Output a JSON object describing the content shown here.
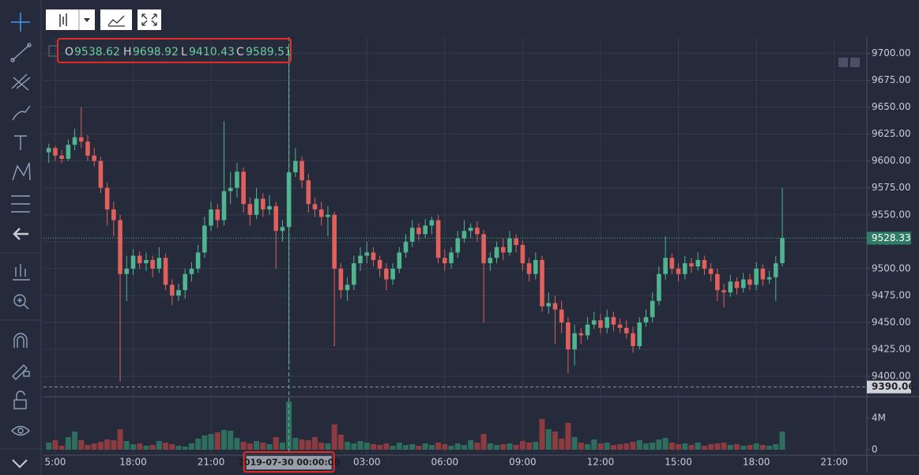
{
  "chart_data": {
    "type": "candlestick",
    "ohlc_labels": [
      "O",
      "H",
      "L",
      "C"
    ],
    "categories": [
      null,
      "5:00",
      null,
      null,
      null,
      null,
      null,
      null,
      null,
      null,
      null,
      null,
      null,
      "18:00",
      null,
      null,
      null,
      null,
      null,
      null,
      null,
      null,
      null,
      null,
      null,
      "21:00",
      null,
      null,
      null,
      null,
      null,
      null,
      null,
      null,
      null,
      null,
      null,
      "2019-07-30 00:00:00",
      null,
      null,
      null,
      null,
      null,
      null,
      null,
      null,
      null,
      null,
      null,
      "03:00",
      null,
      null,
      null,
      null,
      null,
      null,
      null,
      null,
      null,
      null,
      null,
      "06:00",
      null,
      null,
      null,
      null,
      null,
      null,
      null,
      null,
      null,
      null,
      null,
      "09:00",
      null,
      null,
      null,
      null,
      null,
      null,
      null,
      null,
      null,
      null,
      null,
      "12:00",
      null,
      null,
      null,
      null,
      null,
      null,
      null,
      null,
      null,
      null,
      null,
      "15:00",
      null,
      null,
      null,
      null,
      null,
      null,
      null,
      null,
      null,
      null,
      null,
      "18:00",
      null,
      null,
      null,
      null,
      null,
      null,
      null,
      null,
      null,
      null,
      null,
      "21:00"
    ],
    "ohlc": [
      [
        9608,
        9616,
        9598,
        9612
      ],
      [
        9612,
        9614,
        9600,
        9605
      ],
      [
        9605,
        9610,
        9598,
        9602
      ],
      [
        9602,
        9620,
        9600,
        9615
      ],
      [
        9615,
        9630,
        9610,
        9622
      ],
      [
        9622,
        9650,
        9612,
        9618
      ],
      [
        9618,
        9624,
        9600,
        9605
      ],
      [
        9605,
        9612,
        9595,
        9600
      ],
      [
        9600,
        9604,
        9570,
        9575
      ],
      [
        9575,
        9580,
        9540,
        9555
      ],
      [
        9555,
        9562,
        9530,
        9545
      ],
      [
        9545,
        9550,
        9395,
        9495
      ],
      [
        9495,
        9512,
        9470,
        9500
      ],
      [
        9500,
        9518,
        9494,
        9512
      ],
      [
        9512,
        9516,
        9500,
        9505
      ],
      [
        9505,
        9515,
        9498,
        9508
      ],
      [
        9508,
        9512,
        9492,
        9500
      ],
      [
        9500,
        9520,
        9496,
        9510
      ],
      [
        9510,
        9514,
        9480,
        9485
      ],
      [
        9485,
        9490,
        9466,
        9475
      ],
      [
        9475,
        9486,
        9470,
        9480
      ],
      [
        9480,
        9500,
        9472,
        9495
      ],
      [
        9495,
        9506,
        9488,
        9500
      ],
      [
        9500,
        9522,
        9496,
        9515
      ],
      [
        9515,
        9548,
        9510,
        9540
      ],
      [
        9540,
        9562,
        9535,
        9555
      ],
      [
        9555,
        9560,
        9538,
        9545
      ],
      [
        9545,
        9637,
        9540,
        9572
      ],
      [
        9572,
        9590,
        9560,
        9575
      ],
      [
        9575,
        9598,
        9566,
        9590
      ],
      [
        9590,
        9594,
        9552,
        9560
      ],
      [
        9560,
        9566,
        9540,
        9550
      ],
      [
        9550,
        9575,
        9546,
        9565
      ],
      [
        9565,
        9570,
        9548,
        9555
      ],
      [
        9555,
        9568,
        9550,
        9558
      ],
      [
        9558,
        9562,
        9500,
        9535
      ],
      [
        9535,
        9545,
        9525,
        9538.62
      ],
      [
        9538.62,
        9698.92,
        9410.43,
        9589.51
      ],
      [
        9589.51,
        9612,
        9585,
        9600
      ],
      [
        9600,
        9604,
        9575,
        9582
      ],
      [
        9582,
        9588,
        9552,
        9560
      ],
      [
        9560,
        9566,
        9548,
        9555
      ],
      [
        9555,
        9562,
        9540,
        9548
      ],
      [
        9548,
        9558,
        9530,
        9550
      ],
      [
        9550,
        9553,
        9428,
        9500
      ],
      [
        9500,
        9505,
        9472,
        9480
      ],
      [
        9480,
        9492,
        9470,
        9485
      ],
      [
        9485,
        9512,
        9480,
        9505
      ],
      [
        9505,
        9520,
        9498,
        9512
      ],
      [
        9512,
        9525,
        9505,
        9515
      ],
      [
        9515,
        9520,
        9502,
        9508
      ],
      [
        9508,
        9512,
        9492,
        9500
      ],
      [
        9500,
        9505,
        9480,
        9490
      ],
      [
        9490,
        9505,
        9485,
        9500
      ],
      [
        9500,
        9520,
        9496,
        9515
      ],
      [
        9515,
        9532,
        9510,
        9525
      ],
      [
        9525,
        9545,
        9520,
        9538
      ],
      [
        9538,
        9542,
        9526,
        9532
      ],
      [
        9532,
        9546,
        9528,
        9540
      ],
      [
        9540,
        9548,
        9532,
        9545
      ],
      [
        9545,
        9550,
        9505,
        9510
      ],
      [
        9510,
        9518,
        9498,
        9505
      ],
      [
        9505,
        9520,
        9500,
        9515
      ],
      [
        9515,
        9535,
        9510,
        9528
      ],
      [
        9528,
        9545,
        9524,
        9535
      ],
      [
        9535,
        9542,
        9528,
        9538
      ],
      [
        9538,
        9544,
        9525,
        9532
      ],
      [
        9532,
        9536,
        9450,
        9505
      ],
      [
        9505,
        9515,
        9498,
        9510
      ],
      [
        9510,
        9525,
        9505,
        9520
      ],
      [
        9520,
        9528,
        9508,
        9515
      ],
      [
        9515,
        9535,
        9512,
        9528
      ],
      [
        9528,
        9532,
        9515,
        9522
      ],
      [
        9522,
        9526,
        9498,
        9505
      ],
      [
        9505,
        9510,
        9488,
        9495
      ],
      [
        9495,
        9515,
        9490,
        9508
      ],
      [
        9508,
        9512,
        9460,
        9465
      ],
      [
        9465,
        9478,
        9458,
        9468
      ],
      [
        9468,
        9475,
        9430,
        9462
      ],
      [
        9462,
        9470,
        9440,
        9450
      ],
      [
        9450,
        9455,
        9403,
        9425
      ],
      [
        9425,
        9448,
        9410,
        9440
      ],
      [
        9440,
        9445,
        9430,
        9438
      ],
      [
        9438,
        9455,
        9434,
        9448
      ],
      [
        9448,
        9460,
        9444,
        9452
      ],
      [
        9452,
        9458,
        9440,
        9445
      ],
      [
        9445,
        9462,
        9440,
        9455
      ],
      [
        9455,
        9460,
        9442,
        9448
      ],
      [
        9448,
        9454,
        9440,
        9445
      ],
      [
        9445,
        9452,
        9435,
        9440
      ],
      [
        9440,
        9446,
        9422,
        9428
      ],
      [
        9428,
        9455,
        9425,
        9450
      ],
      [
        9450,
        9462,
        9446,
        9455
      ],
      [
        9455,
        9478,
        9450,
        9470
      ],
      [
        9470,
        9502,
        9466,
        9495
      ],
      [
        9495,
        9530,
        9490,
        9510
      ],
      [
        9510,
        9514,
        9495,
        9500
      ],
      [
        9500,
        9505,
        9488,
        9495
      ],
      [
        9495,
        9512,
        9490,
        9505
      ],
      [
        9505,
        9510,
        9496,
        9502
      ],
      [
        9502,
        9515,
        9498,
        9508
      ],
      [
        9508,
        9512,
        9494,
        9500
      ],
      [
        9500,
        9505,
        9488,
        9495
      ],
      [
        9495,
        9500,
        9470,
        9480
      ],
      [
        9480,
        9486,
        9464,
        9478
      ],
      [
        9478,
        9494,
        9474,
        9488
      ],
      [
        9488,
        9492,
        9476,
        9482
      ],
      [
        9482,
        9496,
        9478,
        9490
      ],
      [
        9490,
        9495,
        9480,
        9485
      ],
      [
        9485,
        9506,
        9480,
        9500
      ],
      [
        9500,
        9504,
        9484,
        9490
      ],
      [
        9490,
        9498,
        9486,
        9492
      ],
      [
        9492,
        9512,
        9470,
        9505
      ],
      [
        9505,
        9575,
        9502,
        9528.33
      ],
      null,
      null,
      null,
      null,
      null,
      null,
      null,
      null
    ],
    "volume": [
      900000,
      1200000,
      500000,
      1600000,
      2300000,
      1200000,
      600000,
      800000,
      1000000,
      1300000,
      1200000,
      2600000,
      1100000,
      700000,
      800000,
      500000,
      600000,
      1100000,
      900000,
      700000,
      500000,
      400000,
      800000,
      1400000,
      1800000,
      2000000,
      2200000,
      2500000,
      2400000,
      1500000,
      1000000,
      800000,
      1100000,
      900000,
      700000,
      1600000,
      900000,
      6100000,
      1500000,
      1300000,
      1200000,
      1600000,
      900000,
      800000,
      3200000,
      1900000,
      1000000,
      800000,
      1100000,
      900000,
      700000,
      600000,
      800000,
      500000,
      900000,
      600000,
      700000,
      500000,
      800000,
      600000,
      900000,
      700000,
      500000,
      800000,
      600000,
      1200000,
      900000,
      2000000,
      800000,
      600000,
      700000,
      800000,
      600000,
      1100000,
      900000,
      1000000,
      3900000,
      2600000,
      2300000,
      1400000,
      3400000,
      1600000,
      900000,
      700000,
      1300000,
      800000,
      900000,
      600000,
      700000,
      800000,
      1000000,
      1200000,
      800000,
      900000,
      1300000,
      1500000,
      900000,
      700000,
      800000,
      600000,
      900000,
      500000,
      700000,
      800000,
      900000,
      600000,
      700000,
      500000,
      600000,
      800000,
      600000,
      500000,
      700000,
      2300000,
      null,
      null,
      null,
      null,
      null,
      null,
      null,
      null
    ],
    "ylim": [
      9381,
      9715
    ],
    "yticks": [
      {
        "value": 9400,
        "label": "9400.00"
      },
      {
        "value": 9425,
        "label": "9425.00"
      },
      {
        "value": 9450,
        "label": "9450.00"
      },
      {
        "value": 9475,
        "label": "9475.00"
      },
      {
        "value": 9500,
        "label": "9500.00"
      },
      {
        "value": 9525,
        "label": "9525.00"
      },
      {
        "value": 9550,
        "label": "9550.00"
      },
      {
        "value": 9575,
        "label": "9575.00"
      },
      {
        "value": 9600,
        "label": "9600.00"
      },
      {
        "value": 9625,
        "label": "9625.00"
      },
      {
        "value": 9650,
        "label": "9650.00"
      },
      {
        "value": 9675,
        "label": "9675.00"
      },
      {
        "value": 9700,
        "label": "9700.00"
      }
    ],
    "volume_lim": [
      -600000,
      6600000
    ],
    "volume_ticks": [
      0,
      {
        "value": 4000000,
        "label": "4M"
      }
    ],
    "marker_line": 9390.06,
    "up_color": "#4fb48f",
    "down_color": "#e0605d",
    "volume_up_color": "#2e6e5e",
    "volume_down_color": "#8c3c40",
    "grid": true
  }
}
